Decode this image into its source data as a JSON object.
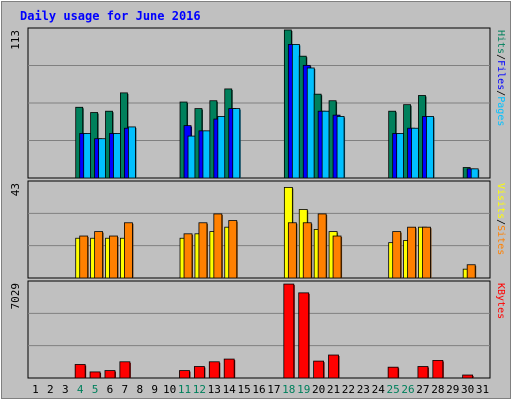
{
  "chart_data": {
    "type": "bar",
    "title": "Daily usage for June 2016",
    "days": [
      "1",
      "2",
      "3",
      "4",
      "5",
      "6",
      "7",
      "8",
      "9",
      "10",
      "11",
      "12",
      "13",
      "14",
      "15",
      "16",
      "17",
      "18",
      "19",
      "20",
      "21",
      "22",
      "23",
      "24",
      "25",
      "26",
      "27",
      "28",
      "29",
      "30",
      "31"
    ],
    "weekend_days": [
      "4",
      "5",
      "11",
      "12",
      "18",
      "19",
      "25",
      "26"
    ],
    "panels": [
      {
        "id": "hits-files-pages",
        "ymax": 113,
        "ymax_label": "113",
        "legend": [
          "Pages",
          "/",
          "Files",
          "/",
          "Hits"
        ],
        "series": [
          {
            "name": "Hits",
            "color": "#00805c",
            "values": [
              0,
              0,
              0,
              54,
              50,
              51,
              65,
              0,
              0,
              0,
              58,
              53,
              59,
              68,
              0,
              0,
              0,
              113,
              93,
              64,
              59,
              0,
              0,
              0,
              51,
              56,
              63,
              0,
              0,
              8,
              0
            ]
          },
          {
            "name": "Files",
            "color": "#0000ff",
            "values": [
              0,
              0,
              0,
              34,
              30,
              34,
              38,
              0,
              0,
              0,
              40,
              36,
              45,
              53,
              0,
              0,
              0,
              102,
              86,
              51,
              48,
              0,
              0,
              0,
              34,
              38,
              47,
              0,
              0,
              7,
              0
            ]
          },
          {
            "name": "Pages",
            "color": "#00c0ff",
            "values": [
              0,
              0,
              0,
              34,
              30,
              34,
              39,
              0,
              0,
              0,
              32,
              36,
              47,
              53,
              0,
              0,
              0,
              102,
              84,
              51,
              47,
              0,
              0,
              0,
              34,
              38,
              47,
              0,
              0,
              7,
              0
            ]
          }
        ]
      },
      {
        "id": "visits-sites",
        "ymax": 43,
        "ymax_label": "43",
        "legend": [
          "Sites",
          "/",
          "Visits"
        ],
        "series": [
          {
            "name": "Visits",
            "color": "#ffff00",
            "values": [
              0,
              0,
              0,
              18,
              18,
              18,
              18,
              0,
              0,
              0,
              18,
              20,
              21,
              23,
              0,
              0,
              0,
              41,
              31,
              22,
              21,
              0,
              0,
              0,
              16,
              17,
              23,
              0,
              0,
              4,
              0
            ]
          },
          {
            "name": "Sites",
            "color": "#ff8000",
            "values": [
              0,
              0,
              0,
              19,
              21,
              19,
              25,
              0,
              0,
              0,
              20,
              25,
              29,
              26,
              0,
              0,
              0,
              25,
              25,
              29,
              19,
              0,
              0,
              0,
              21,
              23,
              23,
              0,
              0,
              6,
              0
            ]
          }
        ]
      },
      {
        "id": "kbytes",
        "ymax": 7029,
        "ymax_label": "7029",
        "legend": [
          "KBytes"
        ],
        "series": [
          {
            "name": "KBytes",
            "color": "#ff0000",
            "values": [
              0,
              0,
              0,
              1000,
              450,
              550,
              1200,
              0,
              0,
              0,
              550,
              850,
              1200,
              1400,
              0,
              0,
              0,
              6950,
              6300,
              1250,
              1700,
              0,
              0,
              0,
              800,
              0,
              850,
              1300,
              0,
              220,
              0
            ]
          }
        ]
      }
    ]
  }
}
